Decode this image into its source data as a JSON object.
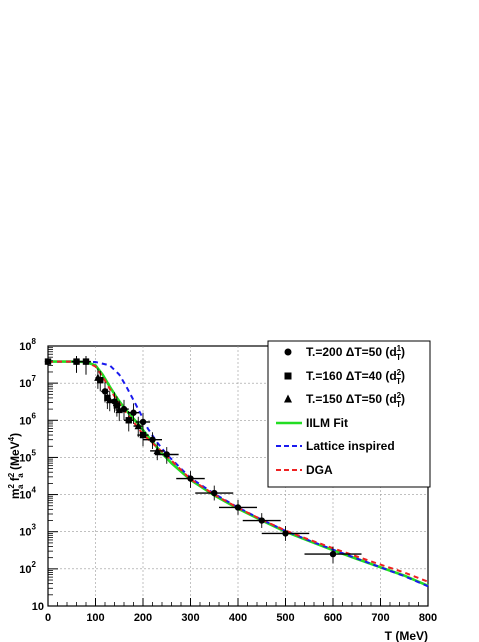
{
  "chart_data": {
    "type": "scatter",
    "title": "",
    "xlabel": "T (MeV)",
    "ylabel": "m_a^2 f_a^2 (MeV^4)",
    "ylabel_parts": {
      "main": "m",
      "sub1": "a",
      "sup1": "2",
      "f": "f",
      "sub2": "a",
      "sup2": "2",
      "unit_open": "(MeV",
      "unit_sup": "4",
      "unit_close": ")"
    },
    "xlim": [
      0,
      800
    ],
    "ylim": [
      10,
      100000000
    ],
    "yscale": "log",
    "grid": true,
    "legend_position": "top-right",
    "x_ticks": [
      "0",
      "100",
      "200",
      "300",
      "400",
      "500",
      "600",
      "700",
      "800"
    ],
    "y_ticks": [
      {
        "value": 10,
        "base": "10",
        "exp": ""
      },
      {
        "value": 100,
        "base": "10",
        "exp": "2"
      },
      {
        "value": 1000,
        "base": "10",
        "exp": "3"
      },
      {
        "value": 10000,
        "base": "10",
        "exp": "4"
      },
      {
        "value": 100000,
        "base": "10",
        "exp": "5"
      },
      {
        "value": 1000000,
        "base": "10",
        "exp": "6"
      },
      {
        "value": 10000000,
        "base": "10",
        "exp": "7"
      },
      {
        "value": 100000000,
        "base": "10",
        "exp": "8"
      }
    ],
    "legend": [
      {
        "key": "circles",
        "marker": "circle",
        "text": "T.=200 ΔT=50 (d",
        "sup": "1",
        "sub": "T",
        "close": ")"
      },
      {
        "key": "squares",
        "marker": "square",
        "text": "T.=160 ΔT=40 (d",
        "sup": "2",
        "sub": "T",
        "close": ")"
      },
      {
        "key": "triangles",
        "marker": "triangle",
        "text": "T.=150 ΔT=50 (d",
        "sup": "2",
        "sub": "T",
        "close": ")"
      },
      {
        "key": "ilm",
        "line": "solid",
        "color": "#22dd22",
        "text": "IILM Fit"
      },
      {
        "key": "lattice",
        "line": "dashed",
        "color": "#1a1aee",
        "text": "Lattice inspired"
      },
      {
        "key": "dga",
        "line": "dashed",
        "color": "#ee2222",
        "text": "DGA"
      }
    ],
    "series": [
      {
        "key": "circles",
        "marker": "circle",
        "points": [
          {
            "x": 0,
            "y": 38000000,
            "xerr": 5,
            "yerr_lo": 0.15,
            "yerr_hi": 0.15
          },
          {
            "x": 60,
            "y": 38000000,
            "xerr": 10,
            "yerr_lo": 0.3,
            "yerr_hi": 0.15
          },
          {
            "x": 80,
            "y": 38000000,
            "xerr": 10,
            "yerr_lo": 0.35,
            "yerr_hi": 0.15
          },
          {
            "x": 120,
            "y": 6000000,
            "xerr": 8,
            "yerr_lo": 0.3,
            "yerr_hi": 0.25
          },
          {
            "x": 140,
            "y": 3200000,
            "xerr": 8,
            "yerr_lo": 0.3,
            "yerr_hi": 0.25
          },
          {
            "x": 160,
            "y": 2000000,
            "xerr": 10,
            "yerr_lo": 0.3,
            "yerr_hi": 0.25
          },
          {
            "x": 180,
            "y": 1600000,
            "xerr": 12,
            "yerr_lo": 0.3,
            "yerr_hi": 0.25
          },
          {
            "x": 200,
            "y": 900000,
            "xerr": 15,
            "yerr_lo": 0.3,
            "yerr_hi": 0.25
          },
          {
            "x": 220,
            "y": 300000,
            "xerr": 20,
            "yerr_lo": 0.25,
            "yerr_hi": 0.2
          },
          {
            "x": 250,
            "y": 120000,
            "xerr": 25,
            "yerr_lo": 0.25,
            "yerr_hi": 0.2
          },
          {
            "x": 300,
            "y": 27000,
            "xerr": 30,
            "yerr_lo": 0.25,
            "yerr_hi": 0.2
          },
          {
            "x": 350,
            "y": 11000,
            "xerr": 40,
            "yerr_lo": 0.2,
            "yerr_hi": 0.2
          },
          {
            "x": 400,
            "y": 4500,
            "xerr": 40,
            "yerr_lo": 0.2,
            "yerr_hi": 0.2
          },
          {
            "x": 450,
            "y": 2000,
            "xerr": 40,
            "yerr_lo": 0.2,
            "yerr_hi": 0.2
          },
          {
            "x": 500,
            "y": 900,
            "xerr": 50,
            "yerr_lo": 0.2,
            "yerr_hi": 0.2
          },
          {
            "x": 600,
            "y": 250,
            "xerr": 60,
            "yerr_lo": 0.25,
            "yerr_hi": 0.2
          }
        ]
      },
      {
        "key": "squares",
        "marker": "square",
        "points": [
          {
            "x": 0,
            "y": 38000000,
            "xerr": 5,
            "yerr_lo": 0.15,
            "yerr_hi": 0.15
          },
          {
            "x": 60,
            "y": 38000000,
            "xerr": 10,
            "yerr_lo": 0.3,
            "yerr_hi": 0.15
          },
          {
            "x": 80,
            "y": 38000000,
            "xerr": 10,
            "yerr_lo": 0.35,
            "yerr_hi": 0.15
          },
          {
            "x": 110,
            "y": 12000000,
            "xerr": 6,
            "yerr_lo": 0.3,
            "yerr_hi": 0.25
          },
          {
            "x": 125,
            "y": 4000000,
            "xerr": 6,
            "yerr_lo": 0.3,
            "yerr_hi": 0.25
          },
          {
            "x": 145,
            "y": 2500000,
            "xerr": 8,
            "yerr_lo": 0.3,
            "yerr_hi": 0.25
          },
          {
            "x": 170,
            "y": 1000000,
            "xerr": 10,
            "yerr_lo": 0.3,
            "yerr_hi": 0.25
          },
          {
            "x": 200,
            "y": 400000,
            "xerr": 12,
            "yerr_lo": 0.3,
            "yerr_hi": 0.25
          }
        ]
      },
      {
        "key": "triangles",
        "marker": "triangle",
        "points": [
          {
            "x": 105,
            "y": 14000000,
            "xerr": 5,
            "yerr_lo": 0.3,
            "yerr_hi": 0.25
          },
          {
            "x": 130,
            "y": 3500000,
            "xerr": 6,
            "yerr_lo": 0.3,
            "yerr_hi": 0.25
          },
          {
            "x": 150,
            "y": 1900000,
            "xerr": 8,
            "yerr_lo": 0.3,
            "yerr_hi": 0.25
          },
          {
            "x": 190,
            "y": 700000,
            "xerr": 10,
            "yerr_lo": 0.3,
            "yerr_hi": 0.25
          },
          {
            "x": 230,
            "y": 150000,
            "xerr": 15,
            "yerr_lo": 0.25,
            "yerr_hi": 0.2
          }
        ]
      }
    ],
    "curves": [
      {
        "key": "ilm",
        "color": "#22dd22",
        "dashed": false,
        "points": [
          [
            0,
            38000000
          ],
          [
            50,
            38000000
          ],
          [
            80,
            37000000
          ],
          [
            100,
            30000000
          ],
          [
            115,
            17000000
          ],
          [
            130,
            8000000
          ],
          [
            145,
            4000000
          ],
          [
            160,
            2200000
          ],
          [
            175,
            1300000
          ],
          [
            190,
            800000
          ],
          [
            205,
            450000
          ],
          [
            220,
            260000
          ],
          [
            240,
            130000
          ],
          [
            260,
            70000
          ],
          [
            300,
            25000
          ],
          [
            350,
            9500
          ],
          [
            400,
            4200
          ],
          [
            450,
            2000
          ],
          [
            500,
            1000
          ],
          [
            550,
            560
          ],
          [
            600,
            320
          ],
          [
            650,
            185
          ],
          [
            700,
            110
          ],
          [
            750,
            66
          ],
          [
            800,
            35
          ]
        ]
      },
      {
        "key": "lattice",
        "color": "#1a1aee",
        "dashed": true,
        "points": [
          [
            0,
            38000000
          ],
          [
            50,
            38000000
          ],
          [
            100,
            37000000
          ],
          [
            130,
            30000000
          ],
          [
            150,
            17000000
          ],
          [
            165,
            8000000
          ],
          [
            180,
            3500000
          ],
          [
            195,
            1500000
          ],
          [
            210,
            600000
          ],
          [
            230,
            250000
          ],
          [
            250,
            120000
          ],
          [
            280,
            50000
          ],
          [
            300,
            28000
          ],
          [
            350,
            10500
          ],
          [
            400,
            4500
          ],
          [
            450,
            2100
          ],
          [
            500,
            1050
          ],
          [
            550,
            580
          ],
          [
            600,
            330
          ],
          [
            650,
            190
          ],
          [
            700,
            110
          ],
          [
            750,
            64
          ],
          [
            800,
            34
          ]
        ]
      },
      {
        "key": "dga",
        "color": "#ee2222",
        "dashed": true,
        "points": [
          [
            0,
            38000000
          ],
          [
            50,
            38000000
          ],
          [
            80,
            37000000
          ],
          [
            100,
            28000000
          ],
          [
            115,
            15000000
          ],
          [
            130,
            7000000
          ],
          [
            145,
            3500000
          ],
          [
            160,
            1900000
          ],
          [
            180,
            900000
          ],
          [
            200,
            420000
          ],
          [
            220,
            240000
          ],
          [
            250,
            110000
          ],
          [
            300,
            26000
          ],
          [
            350,
            10000
          ],
          [
            400,
            4400
          ],
          [
            450,
            2100
          ],
          [
            500,
            1080
          ],
          [
            550,
            610
          ],
          [
            600,
            360
          ],
          [
            650,
            215
          ],
          [
            700,
            130
          ],
          [
            750,
            80
          ],
          [
            800,
            45
          ]
        ]
      }
    ]
  }
}
